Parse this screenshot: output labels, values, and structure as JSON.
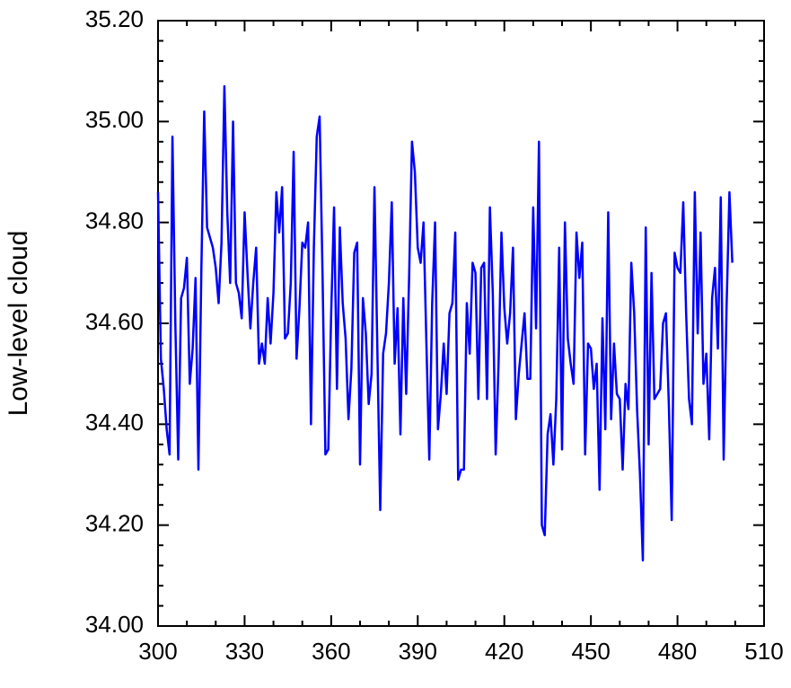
{
  "chart_data": {
    "type": "line",
    "ylabel": "Low-level cloud",
    "x": [
      300,
      301,
      302,
      303,
      304,
      305,
      306,
      307,
      308,
      309,
      310,
      311,
      312,
      313,
      314,
      315,
      316,
      317,
      318,
      319,
      320,
      321,
      322,
      323,
      324,
      325,
      326,
      327,
      328,
      329,
      330,
      331,
      332,
      333,
      334,
      335,
      336,
      337,
      338,
      339,
      340,
      341,
      342,
      343,
      344,
      345,
      346,
      347,
      348,
      349,
      350,
      351,
      352,
      353,
      354,
      355,
      356,
      357,
      358,
      359,
      360,
      361,
      362,
      363,
      364,
      365,
      366,
      367,
      368,
      369,
      370,
      371,
      372,
      373,
      374,
      375,
      376,
      377,
      378,
      379,
      380,
      381,
      382,
      383,
      384,
      385,
      386,
      387,
      388,
      389,
      390,
      391,
      392,
      393,
      394,
      395,
      396,
      397,
      398,
      399,
      400,
      401,
      402,
      403,
      404,
      405,
      406,
      407,
      408,
      409,
      410,
      411,
      412,
      413,
      414,
      415,
      416,
      417,
      418,
      419,
      420,
      421,
      422,
      423,
      424,
      425,
      426,
      427,
      428,
      429,
      430,
      431,
      432,
      433,
      434,
      435,
      436,
      437,
      438,
      439,
      440,
      441,
      442,
      443,
      444,
      445,
      446,
      447,
      448,
      449,
      450,
      451,
      452,
      453,
      454,
      455,
      456,
      457,
      458,
      459,
      460,
      461,
      462,
      463,
      464,
      465,
      466,
      467,
      468,
      469,
      470,
      471,
      472,
      473,
      474,
      475,
      476,
      477,
      478,
      479,
      480,
      481,
      482,
      483,
      484,
      485,
      486,
      487,
      488,
      489,
      490,
      491,
      492,
      493,
      494,
      495,
      496,
      497,
      498,
      499
    ],
    "series": [
      {
        "color": "#0000ff",
        "values": [
          34.86,
          34.53,
          34.47,
          34.39,
          34.34,
          34.97,
          34.6,
          34.33,
          34.65,
          34.67,
          34.73,
          34.48,
          34.55,
          34.69,
          34.31,
          34.7,
          35.02,
          34.79,
          34.77,
          34.75,
          34.71,
          34.64,
          34.76,
          35.07,
          34.82,
          34.68,
          35.0,
          34.68,
          34.66,
          34.61,
          34.82,
          34.7,
          34.59,
          34.68,
          34.75,
          34.52,
          34.56,
          34.52,
          34.65,
          34.56,
          34.66,
          34.86,
          34.78,
          34.87,
          34.57,
          34.58,
          34.68,
          34.94,
          34.53,
          34.63,
          34.76,
          34.75,
          34.8,
          34.4,
          34.75,
          34.97,
          35.01,
          34.7,
          34.34,
          34.35,
          34.62,
          34.83,
          34.47,
          34.79,
          34.64,
          34.57,
          34.41,
          34.51,
          34.74,
          34.76,
          34.32,
          34.65,
          34.58,
          34.44,
          34.5,
          34.87,
          34.55,
          34.23,
          34.54,
          34.58,
          34.68,
          34.84,
          34.52,
          34.63,
          34.38,
          34.65,
          34.46,
          34.69,
          34.96,
          34.9,
          34.75,
          34.72,
          34.8,
          34.56,
          34.33,
          34.64,
          34.8,
          34.39,
          34.46,
          34.56,
          34.46,
          34.62,
          34.64,
          34.78,
          34.29,
          34.31,
          34.31,
          34.64,
          34.54,
          34.72,
          34.7,
          34.45,
          34.71,
          34.72,
          34.45,
          34.83,
          34.66,
          34.34,
          34.52,
          34.78,
          34.63,
          34.56,
          34.62,
          34.75,
          34.41,
          34.5,
          34.56,
          34.62,
          34.49,
          34.49,
          34.83,
          34.59,
          34.96,
          34.2,
          34.18,
          34.38,
          34.42,
          34.32,
          34.45,
          34.75,
          34.35,
          34.8,
          34.57,
          34.52,
          34.48,
          34.78,
          34.69,
          34.76,
          34.34,
          34.56,
          34.55,
          34.47,
          34.52,
          34.27,
          34.61,
          34.39,
          34.82,
          34.41,
          34.56,
          34.46,
          34.45,
          34.31,
          34.48,
          34.43,
          34.72,
          34.62,
          34.43,
          34.3,
          34.13,
          34.79,
          34.36,
          34.7,
          34.45,
          34.46,
          34.47,
          34.6,
          34.62,
          34.44,
          34.21,
          34.74,
          34.71,
          34.7,
          34.84,
          34.62,
          34.45,
          34.4,
          34.86,
          34.58,
          34.78,
          34.48,
          34.54,
          34.37,
          34.65,
          34.71,
          34.55,
          34.85,
          34.33,
          34.63,
          34.86,
          34.72
        ]
      }
    ],
    "xlim": [
      300,
      510
    ],
    "xticks": [
      300,
      330,
      360,
      390,
      420,
      450,
      480,
      510
    ],
    "xminorticks": [
      310,
      320,
      340,
      350,
      370,
      380,
      400,
      410,
      430,
      440,
      460,
      470,
      490,
      500
    ],
    "ylim": [
      34.0,
      35.2
    ],
    "yticks": [
      {
        "value": 34.0,
        "label": "34.00"
      },
      {
        "value": 34.2,
        "label": "34.20"
      },
      {
        "value": 34.4,
        "label": "34.40"
      },
      {
        "value": 34.6,
        "label": "34.60"
      },
      {
        "value": 34.8,
        "label": "34.80"
      },
      {
        "value": 35.0,
        "label": "35.00"
      },
      {
        "value": 35.2,
        "label": "35.20"
      }
    ],
    "yminorticks": [
      34.04,
      34.08,
      34.12,
      34.16,
      34.24,
      34.28,
      34.32,
      34.36,
      34.44,
      34.48,
      34.52,
      34.56,
      34.64,
      34.68,
      34.72,
      34.76,
      34.84,
      34.88,
      34.92,
      34.96,
      35.04,
      35.08,
      35.12,
      35.16
    ]
  }
}
